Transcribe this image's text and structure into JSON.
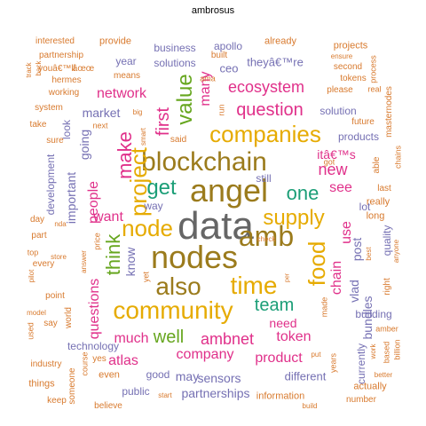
{
  "title": "ambrosus",
  "colors": {
    "grey": "#666666",
    "olive": "#9b7b1c",
    "pink": "#e0308a",
    "orange": "#d87a2e",
    "purple": "#7570b3",
    "green": "#66a61e",
    "teal": "#1b9e77",
    "gold": "#e6ab02"
  },
  "words": [
    {
      "text": "data",
      "color": "grey"
    },
    {
      "text": "angel",
      "color": "olive"
    },
    {
      "text": "nodes",
      "color": "olive"
    },
    {
      "text": "amb",
      "color": "olive"
    },
    {
      "text": "blockchain",
      "color": "olive"
    },
    {
      "text": "community",
      "color": "gold"
    },
    {
      "text": "also",
      "color": "olive"
    },
    {
      "text": "time",
      "color": "gold"
    },
    {
      "text": "companies",
      "color": "gold"
    },
    {
      "text": "node",
      "color": "gold"
    },
    {
      "text": "supply",
      "color": "gold"
    },
    {
      "text": "project",
      "color": "gold"
    },
    {
      "text": "food",
      "color": "gold"
    },
    {
      "text": "value",
      "color": "green"
    },
    {
      "text": "get",
      "color": "teal"
    },
    {
      "text": "one",
      "color": "teal"
    },
    {
      "text": "question",
      "color": "pink"
    },
    {
      "text": "ecosystem",
      "color": "pink"
    },
    {
      "text": "first",
      "color": "pink"
    },
    {
      "text": "team",
      "color": "teal"
    },
    {
      "text": "well",
      "color": "green"
    },
    {
      "text": "ambnet",
      "color": "pink"
    },
    {
      "text": "company",
      "color": "pink"
    },
    {
      "text": "think",
      "color": "green"
    },
    {
      "text": "make",
      "color": "pink"
    },
    {
      "text": "network",
      "color": "pink"
    },
    {
      "text": "many",
      "color": "pink"
    },
    {
      "text": "want",
      "color": "pink"
    },
    {
      "text": "people",
      "color": "pink"
    },
    {
      "text": "new",
      "color": "pink"
    },
    {
      "text": "use",
      "color": "pink"
    },
    {
      "text": "chain",
      "color": "pink"
    },
    {
      "text": "questions",
      "color": "pink"
    },
    {
      "text": "much",
      "color": "pink"
    },
    {
      "text": "atlas",
      "color": "pink"
    },
    {
      "text": "token",
      "color": "pink"
    },
    {
      "text": "product",
      "color": "pink"
    },
    {
      "text": "vlad",
      "color": "purple"
    },
    {
      "text": "see",
      "color": "pink"
    },
    {
      "text": "post",
      "color": "purple"
    },
    {
      "text": "need",
      "color": "pink"
    },
    {
      "text": "bundles",
      "color": "purple"
    },
    {
      "text": "sensors",
      "color": "purple"
    },
    {
      "text": "partnerships",
      "color": "purple"
    },
    {
      "text": "may",
      "color": "purple"
    },
    {
      "text": "important",
      "color": "purple"
    },
    {
      "text": "going",
      "color": "purple"
    },
    {
      "text": "market",
      "color": "purple"
    },
    {
      "text": "itâ€™s",
      "color": "pink"
    },
    {
      "text": "know",
      "color": "purple"
    },
    {
      "text": "different",
      "color": "purple"
    },
    {
      "text": "theyâ€™re",
      "color": "purple"
    },
    {
      "text": "ceo",
      "color": "purple"
    },
    {
      "text": "quality",
      "color": "purple"
    },
    {
      "text": "look",
      "color": "purple"
    },
    {
      "text": "development",
      "color": "purple"
    },
    {
      "text": "technology",
      "color": "purple"
    },
    {
      "text": "building",
      "color": "purple"
    },
    {
      "text": "currently",
      "color": "purple"
    },
    {
      "text": "products",
      "color": "purple"
    },
    {
      "text": "solutions",
      "color": "purple"
    },
    {
      "text": "solution",
      "color": "purple"
    },
    {
      "text": "business",
      "color": "purple"
    },
    {
      "text": "apollo",
      "color": "purple"
    },
    {
      "text": "year",
      "color": "purple"
    },
    {
      "text": "way",
      "color": "purple"
    },
    {
      "text": "lot",
      "color": "purple"
    },
    {
      "text": "still",
      "color": "purple"
    },
    {
      "text": "public",
      "color": "purple"
    },
    {
      "text": "good",
      "color": "purple"
    },
    {
      "text": "actually",
      "color": "orange"
    },
    {
      "text": "information",
      "color": "orange"
    },
    {
      "text": "really",
      "color": "orange"
    },
    {
      "text": "long",
      "color": "orange"
    },
    {
      "text": "already",
      "color": "orange"
    },
    {
      "text": "provide",
      "color": "orange"
    },
    {
      "text": "projects",
      "color": "orange"
    },
    {
      "text": "interested",
      "color": "orange"
    },
    {
      "text": "partnership",
      "color": "orange"
    },
    {
      "text": "youâ€™ll",
      "color": "orange"
    },
    {
      "text": "âœœ",
      "color": "orange"
    },
    {
      "text": "hermes",
      "color": "orange"
    },
    {
      "text": "working",
      "color": "orange"
    },
    {
      "text": "system",
      "color": "orange"
    },
    {
      "text": "take",
      "color": "orange"
    },
    {
      "text": "sure",
      "color": "orange"
    },
    {
      "text": "means",
      "color": "orange"
    },
    {
      "text": "yes",
      "color": "orange"
    },
    {
      "text": "built",
      "color": "orange"
    },
    {
      "text": "ama",
      "color": "orange"
    },
    {
      "text": "second",
      "color": "orange"
    },
    {
      "text": "tokens",
      "color": "orange"
    },
    {
      "text": "please",
      "color": "orange"
    },
    {
      "text": "ensure",
      "color": "orange"
    },
    {
      "text": "process",
      "color": "orange"
    },
    {
      "text": "real",
      "color": "orange"
    },
    {
      "text": "masternodes",
      "color": "orange"
    },
    {
      "text": "future",
      "color": "orange"
    },
    {
      "text": "able",
      "color": "orange"
    },
    {
      "text": "last",
      "color": "orange"
    },
    {
      "text": "chains",
      "color": "orange"
    },
    {
      "text": "run",
      "color": "orange"
    },
    {
      "text": "big",
      "color": "orange"
    },
    {
      "text": "said",
      "color": "orange"
    },
    {
      "text": "smart",
      "color": "orange"
    },
    {
      "text": "got",
      "color": "orange"
    },
    {
      "text": "next",
      "color": "orange"
    },
    {
      "text": "day",
      "color": "orange"
    },
    {
      "text": "nda",
      "color": "orange"
    },
    {
      "text": "part",
      "color": "orange"
    },
    {
      "text": "price",
      "color": "orange"
    },
    {
      "text": "top",
      "color": "orange"
    },
    {
      "text": "store",
      "color": "orange"
    },
    {
      "text": "answer",
      "color": "orange"
    },
    {
      "text": "every",
      "color": "orange"
    },
    {
      "text": "check",
      "color": "orange"
    },
    {
      "text": "best",
      "color": "orange"
    },
    {
      "text": "anyone",
      "color": "orange"
    },
    {
      "text": "pilot",
      "color": "orange"
    },
    {
      "text": "right",
      "color": "orange"
    },
    {
      "text": "point",
      "color": "orange"
    },
    {
      "text": "yet",
      "color": "orange"
    },
    {
      "text": "per",
      "color": "orange"
    },
    {
      "text": "made",
      "color": "orange"
    },
    {
      "text": "model",
      "color": "orange"
    },
    {
      "text": "world",
      "color": "orange"
    },
    {
      "text": "say",
      "color": "orange"
    },
    {
      "text": "used",
      "color": "orange"
    },
    {
      "text": "amber",
      "color": "orange"
    },
    {
      "text": "industry",
      "color": "orange"
    },
    {
      "text": "course",
      "color": "orange"
    },
    {
      "text": "even",
      "color": "orange"
    },
    {
      "text": "put",
      "color": "orange"
    },
    {
      "text": "work",
      "color": "orange"
    },
    {
      "text": "based",
      "color": "orange"
    },
    {
      "text": "billion",
      "color": "orange"
    },
    {
      "text": "things",
      "color": "orange"
    },
    {
      "text": "someone",
      "color": "orange"
    },
    {
      "text": "better",
      "color": "orange"
    },
    {
      "text": "years",
      "color": "orange"
    },
    {
      "text": "keep",
      "color": "orange"
    },
    {
      "text": "believe",
      "color": "orange"
    },
    {
      "text": "start",
      "color": "orange"
    },
    {
      "text": "build",
      "color": "orange"
    },
    {
      "text": "number",
      "color": "orange"
    },
    {
      "text": "track",
      "color": "orange"
    },
    {
      "text": "back",
      "color": "orange"
    }
  ]
}
